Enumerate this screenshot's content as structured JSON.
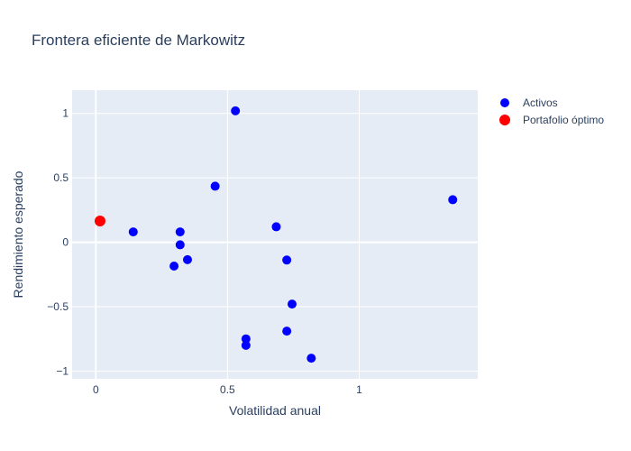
{
  "chart_data": {
    "type": "scatter",
    "title": "Frontera eficiente de Markowitz",
    "xlabel": "Volatilidad anual",
    "ylabel": "Rendimiento esperado",
    "xlim": [
      -0.09,
      1.45
    ],
    "ylim": [
      -1.06,
      1.18
    ],
    "x_ticks": [
      0,
      0.5,
      1
    ],
    "x_tick_labels": [
      "0",
      "0.5",
      "1"
    ],
    "y_ticks": [
      -1,
      -0.5,
      0,
      0.5,
      1
    ],
    "y_tick_labels": [
      "−1",
      "−0.5",
      "0",
      "0.5",
      "1"
    ],
    "grid": true,
    "legend_position": "top-right",
    "series": [
      {
        "name": "Activos",
        "color": "#0000ff",
        "points": [
          {
            "x": 0.53,
            "y": 1.02
          },
          {
            "x": 0.453,
            "y": 0.435
          },
          {
            "x": 1.355,
            "y": 0.33
          },
          {
            "x": 0.685,
            "y": 0.12
          },
          {
            "x": 0.142,
            "y": 0.08
          },
          {
            "x": 0.32,
            "y": 0.08
          },
          {
            "x": 0.32,
            "y": -0.02
          },
          {
            "x": 0.348,
            "y": -0.135
          },
          {
            "x": 0.297,
            "y": -0.185
          },
          {
            "x": 0.725,
            "y": -0.138
          },
          {
            "x": 0.745,
            "y": -0.48
          },
          {
            "x": 0.57,
            "y": -0.75
          },
          {
            "x": 0.57,
            "y": -0.8
          },
          {
            "x": 0.725,
            "y": -0.69
          },
          {
            "x": 0.818,
            "y": -0.9
          }
        ]
      },
      {
        "name": "Portafolio óptimo",
        "color": "#ff0000",
        "points": [
          {
            "x": 0.016,
            "y": 0.165
          }
        ]
      }
    ]
  }
}
